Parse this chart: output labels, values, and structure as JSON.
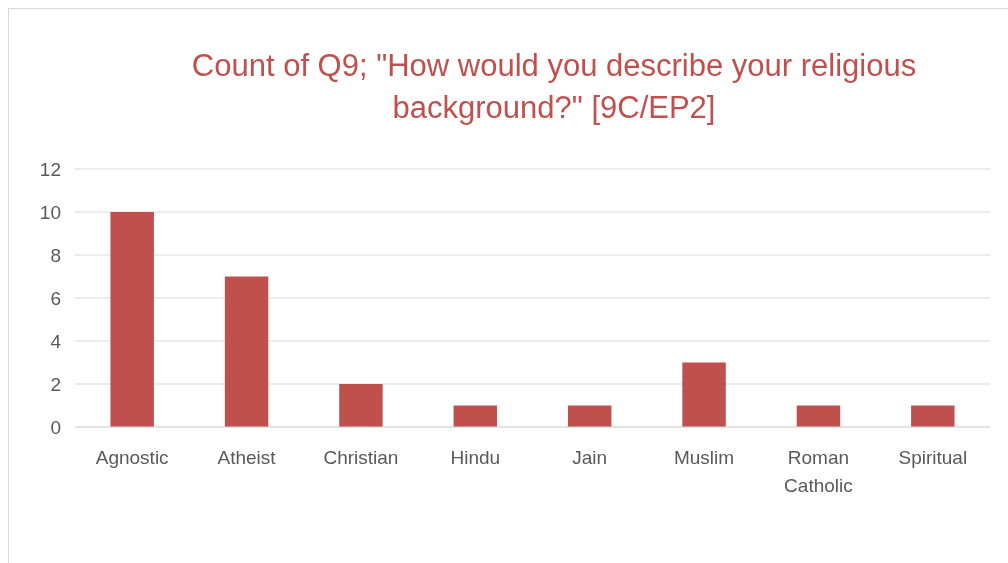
{
  "chart_data": {
    "type": "bar",
    "title": "Count of Q9; \"How would you describe your religious background?\" [9C/EP2]",
    "categories": [
      "Agnostic",
      "Atheist",
      "Christian",
      "Hindu",
      "Jain",
      "Muslim",
      "Roman Catholic",
      "Spiritual"
    ],
    "values": [
      10,
      7,
      2,
      1,
      1,
      3,
      1,
      1
    ],
    "color": "#c0504d",
    "ylim": [
      0,
      12
    ],
    "yticks": [
      0,
      2,
      4,
      6,
      8,
      10,
      12
    ],
    "grid": "y"
  }
}
